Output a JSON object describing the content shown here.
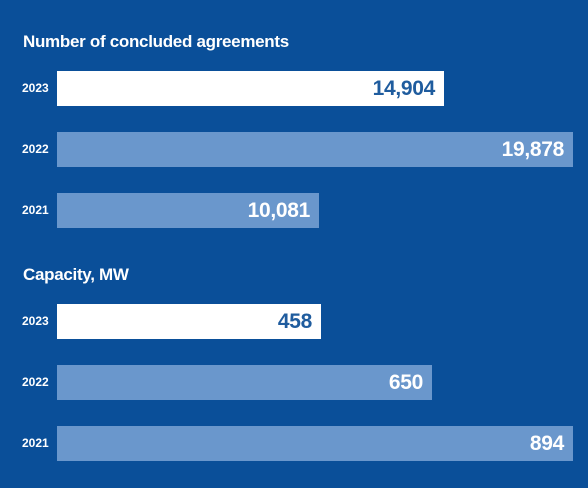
{
  "chart_data": [
    {
      "type": "bar",
      "orientation": "horizontal",
      "title": "Number of concluded agreements",
      "categories": [
        "2023",
        "2022",
        "2021"
      ],
      "values": [
        14904,
        19878,
        10081
      ],
      "value_labels": [
        "14,904",
        "19,878",
        "10,081"
      ],
      "highlight": "2023",
      "colors": {
        "highlight": "#ffffff",
        "default": "#6a97cc",
        "background": "#0a4f99",
        "highlight_text": "#1f5c9e"
      }
    },
    {
      "type": "bar",
      "orientation": "horizontal",
      "title": "Capacity, MW",
      "categories": [
        "2023",
        "2022",
        "2021"
      ],
      "values": [
        458,
        650,
        894
      ],
      "value_labels": [
        "458",
        "650",
        "894"
      ],
      "highlight": "2023",
      "colors": {
        "highlight": "#ffffff",
        "default": "#6a97cc",
        "background": "#0a4f99",
        "highlight_text": "#1f5c9e"
      }
    }
  ]
}
